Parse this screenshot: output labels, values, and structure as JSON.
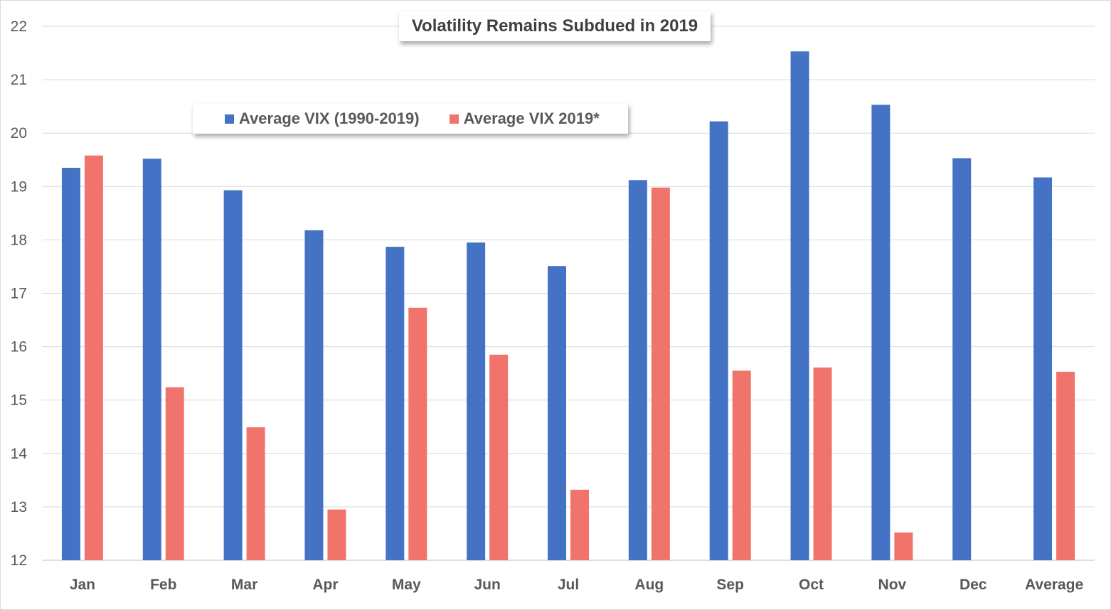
{
  "chart_data": {
    "type": "bar",
    "title": "Volatility Remains Subdued in 2019",
    "xlabel": "",
    "ylabel": "",
    "ylim": [
      12,
      22
    ],
    "y_ticks": [
      12,
      13,
      14,
      15,
      16,
      17,
      18,
      19,
      20,
      21,
      22
    ],
    "grid": true,
    "legend_position": "top-left",
    "categories": [
      "Jan",
      "Feb",
      "Mar",
      "Apr",
      "May",
      "Jun",
      "Jul",
      "Aug",
      "Sep",
      "Oct",
      "Nov",
      "Dec",
      "Average"
    ],
    "series": [
      {
        "name": "Average VIX (1990-2019)",
        "color": "#4472c4",
        "values": [
          19.35,
          19.52,
          18.93,
          18.18,
          17.87,
          17.95,
          17.51,
          19.12,
          20.22,
          21.53,
          20.53,
          19.53,
          19.17
        ]
      },
      {
        "name": "Average VIX 2019*",
        "color": "#f0746b",
        "values": [
          19.58,
          15.24,
          14.49,
          12.95,
          16.73,
          15.85,
          13.32,
          18.98,
          15.55,
          15.61,
          12.52,
          null,
          15.53
        ]
      }
    ]
  }
}
